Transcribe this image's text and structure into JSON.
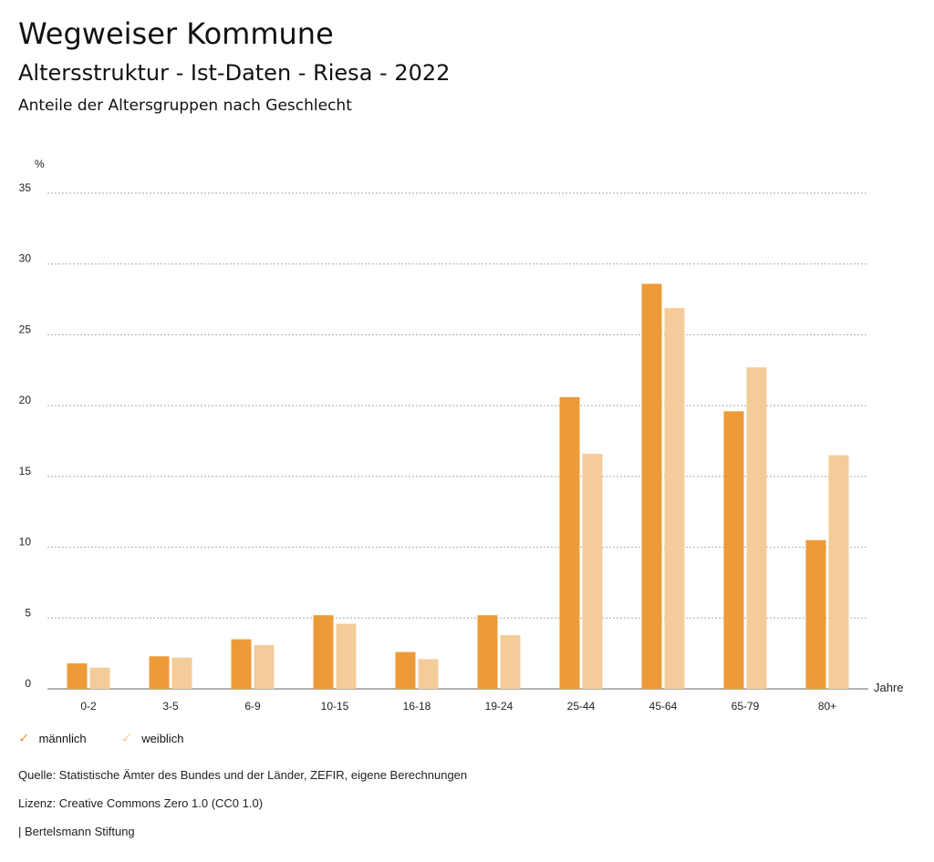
{
  "header": {
    "title": "Wegweiser Kommune",
    "subtitle": "Altersstruktur - Ist-Daten - Riesa - 2022",
    "subsubtitle": "Anteile der Altersgruppen nach Geschlecht"
  },
  "chart_data": {
    "type": "bar",
    "ylabel": "%",
    "xlabel": "Jahre",
    "ylim": [
      0,
      35
    ],
    "yticks": [
      0,
      5,
      10,
      15,
      20,
      25,
      30,
      35
    ],
    "grid": true,
    "categories": [
      "0-2",
      "3-5",
      "6-9",
      "10-15",
      "16-18",
      "19-24",
      "25-44",
      "45-64",
      "65-79",
      "80+"
    ],
    "series": [
      {
        "name": "männlich",
        "color": "#ED9A38",
        "values": [
          1.8,
          2.3,
          3.5,
          5.2,
          2.6,
          5.2,
          20.6,
          28.6,
          19.6,
          10.5
        ]
      },
      {
        "name": "weiblich",
        "color": "#F4CC99",
        "values": [
          1.5,
          2.2,
          3.1,
          4.6,
          2.1,
          3.8,
          16.6,
          26.9,
          22.7,
          16.5
        ]
      }
    ],
    "legend_position": "bottom-left"
  },
  "legend": [
    {
      "label": "männlich",
      "color": "#ED9A38"
    },
    {
      "label": "weiblich",
      "color": "#F4CC99"
    }
  ],
  "footer": {
    "source": "Quelle: Statistische Ämter des Bundes und der Länder, ZEFIR, eigene Berechnungen",
    "license": "Lizenz: Creative Commons Zero 1.0 (CC0 1.0)",
    "publisher": "| Bertelsmann Stiftung"
  }
}
